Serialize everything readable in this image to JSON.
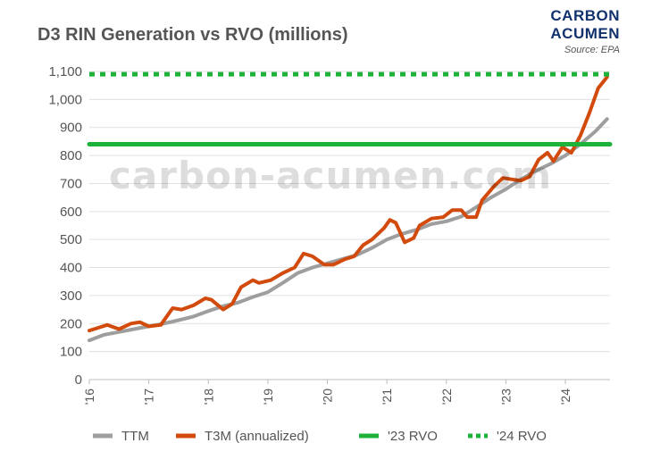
{
  "brand": {
    "line1": "CARBON",
    "line2": "ACUMEN",
    "source": "Source: EPA"
  },
  "watermark": "carbon-acumen.com",
  "chart_data": {
    "type": "line",
    "title": "D3 RIN Generation vs RVO (millions)",
    "xlabel": "",
    "ylabel": "",
    "x_range": [
      2016,
      2024.75
    ],
    "ylim": [
      0,
      1100
    ],
    "y_ticks": [
      0,
      100,
      200,
      300,
      400,
      500,
      600,
      700,
      800,
      900,
      1000,
      1100
    ],
    "y_tick_labels": [
      "0",
      "100",
      "200",
      "300",
      "400",
      "500",
      "600",
      "700",
      "800",
      "900",
      "1,000",
      "1,100"
    ],
    "x_tick_values": [
      2016,
      2017,
      2018,
      2019,
      2020,
      2021,
      2022,
      2023,
      2024
    ],
    "x_tick_labels": [
      "'16",
      "'17",
      "'18",
      "'19",
      "'20",
      "'21",
      "'22",
      "'23",
      "'24"
    ],
    "grid": true,
    "legend_position": "bottom",
    "series": [
      {
        "name": "TTM",
        "color": "#9e9e9e",
        "style": "solid",
        "points": [
          [
            2016,
            140
          ],
          [
            2016.25,
            160
          ],
          [
            2016.5,
            170
          ],
          [
            2016.75,
            180
          ],
          [
            2017,
            190
          ],
          [
            2017.25,
            200
          ],
          [
            2017.5,
            212
          ],
          [
            2017.75,
            225
          ],
          [
            2018,
            245
          ],
          [
            2018.25,
            262
          ],
          [
            2018.5,
            275
          ],
          [
            2018.75,
            295
          ],
          [
            2019,
            312
          ],
          [
            2019.25,
            345
          ],
          [
            2019.5,
            380
          ],
          [
            2019.75,
            400
          ],
          [
            2020,
            415
          ],
          [
            2020.25,
            430
          ],
          [
            2020.5,
            445
          ],
          [
            2020.75,
            470
          ],
          [
            2021,
            500
          ],
          [
            2021.25,
            520
          ],
          [
            2021.5,
            535
          ],
          [
            2021.75,
            555
          ],
          [
            2022,
            565
          ],
          [
            2022.25,
            582
          ],
          [
            2022.5,
            615
          ],
          [
            2022.75,
            650
          ],
          [
            2023,
            680
          ],
          [
            2023.25,
            715
          ],
          [
            2023.5,
            745
          ],
          [
            2023.75,
            770
          ],
          [
            2024,
            800
          ],
          [
            2024.25,
            840
          ],
          [
            2024.5,
            885
          ],
          [
            2024.7,
            930
          ]
        ]
      },
      {
        "name": "T3M (annualized)",
        "color": "#d24a0c",
        "style": "solid",
        "points": [
          [
            2016,
            175
          ],
          [
            2016.15,
            185
          ],
          [
            2016.3,
            195
          ],
          [
            2016.5,
            180
          ],
          [
            2016.7,
            200
          ],
          [
            2016.85,
            205
          ],
          [
            2017,
            190
          ],
          [
            2017.2,
            195
          ],
          [
            2017.4,
            255
          ],
          [
            2017.55,
            250
          ],
          [
            2017.75,
            265
          ],
          [
            2017.95,
            290
          ],
          [
            2018.05,
            285
          ],
          [
            2018.25,
            250
          ],
          [
            2018.4,
            270
          ],
          [
            2018.55,
            330
          ],
          [
            2018.75,
            355
          ],
          [
            2018.85,
            345
          ],
          [
            2019.05,
            355
          ],
          [
            2019.25,
            380
          ],
          [
            2019.45,
            400
          ],
          [
            2019.6,
            450
          ],
          [
            2019.75,
            440
          ],
          [
            2019.95,
            410
          ],
          [
            2020.1,
            410
          ],
          [
            2020.3,
            430
          ],
          [
            2020.45,
            440
          ],
          [
            2020.6,
            480
          ],
          [
            2020.75,
            500
          ],
          [
            2020.95,
            540
          ],
          [
            2021.05,
            570
          ],
          [
            2021.15,
            560
          ],
          [
            2021.3,
            490
          ],
          [
            2021.45,
            505
          ],
          [
            2021.55,
            550
          ],
          [
            2021.75,
            575
          ],
          [
            2021.95,
            580
          ],
          [
            2022.1,
            605
          ],
          [
            2022.25,
            605
          ],
          [
            2022.35,
            580
          ],
          [
            2022.5,
            580
          ],
          [
            2022.6,
            640
          ],
          [
            2022.8,
            690
          ],
          [
            2022.95,
            720
          ],
          [
            2023.1,
            715
          ],
          [
            2023.25,
            710
          ],
          [
            2023.4,
            725
          ],
          [
            2023.55,
            785
          ],
          [
            2023.7,
            810
          ],
          [
            2023.8,
            780
          ],
          [
            2023.95,
            830
          ],
          [
            2024.1,
            810
          ],
          [
            2024.25,
            870
          ],
          [
            2024.4,
            950
          ],
          [
            2024.55,
            1040
          ],
          [
            2024.7,
            1080
          ]
        ]
      },
      {
        "name": "'23 RVO",
        "color": "#1db33a",
        "style": "solid",
        "points": [
          [
            2016,
            840
          ],
          [
            2024.75,
            840
          ]
        ]
      },
      {
        "name": "'24 RVO",
        "color": "#1db33a",
        "style": "dotted",
        "points": [
          [
            2016,
            1090
          ],
          [
            2024.75,
            1090
          ]
        ]
      }
    ]
  }
}
